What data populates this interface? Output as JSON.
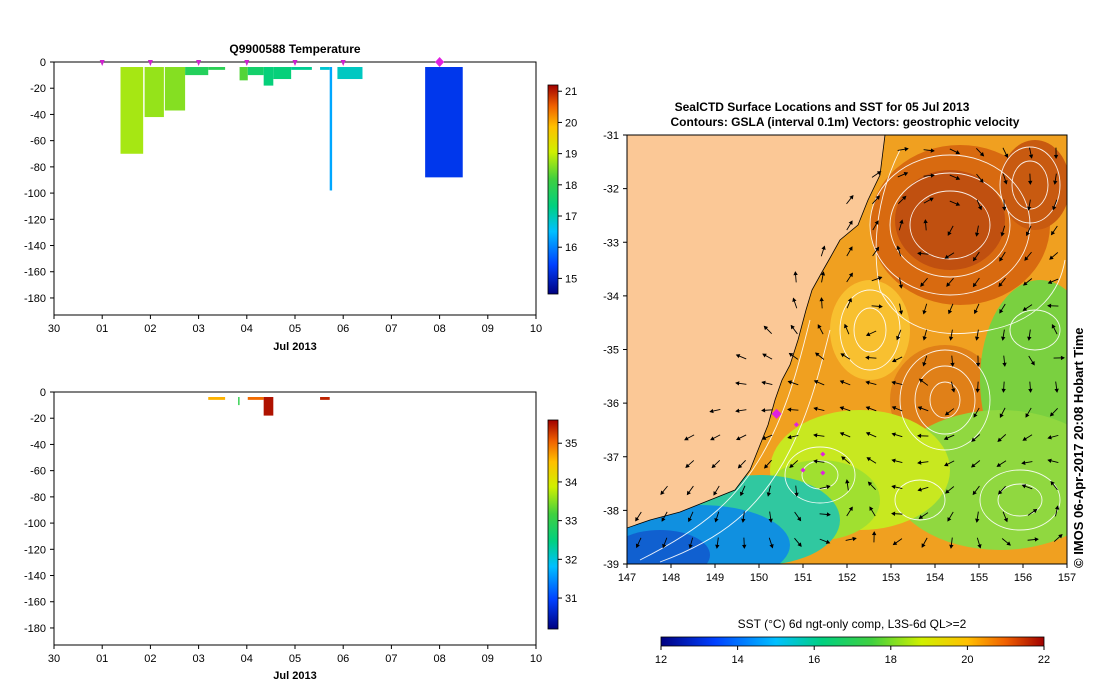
{
  "chart_data": [
    {
      "type": "heatmap",
      "title": "Q9900588  Temperature",
      "xlabel": "Jul 2013",
      "ylabel": "",
      "x_ticks": [
        "30",
        "01",
        "02",
        "03",
        "04",
        "05",
        "06",
        "07",
        "08",
        "09",
        "10"
      ],
      "xlim": [
        0,
        10
      ],
      "y_ticks": [
        0,
        -20,
        -40,
        -60,
        -80,
        -100,
        -120,
        -140,
        -160,
        -180
      ],
      "ylim": [
        -193,
        0
      ],
      "colorbar": {
        "min": 14.5,
        "max": 21.2,
        "ticks": [
          15,
          16,
          17,
          18,
          19,
          20,
          21
        ]
      },
      "profile_markers": [
        1,
        2,
        3,
        4,
        5,
        6
      ],
      "highlight_marker": 8,
      "profiles": [
        {
          "x0": 1.38,
          "x1": 1.85,
          "depth": 70,
          "value": 18.8
        },
        {
          "x0": 1.88,
          "x1": 2.28,
          "depth": 42,
          "value": 18.7
        },
        {
          "x0": 2.3,
          "x1": 2.72,
          "depth": 37,
          "value": 18.6
        },
        {
          "x0": 2.72,
          "x1": 3.2,
          "depth": 10,
          "value": 17.8
        },
        {
          "x0": 3.2,
          "x1": 3.55,
          "depth": 6,
          "value": 17.9
        },
        {
          "x0": 3.85,
          "x1": 4.02,
          "depth": 14,
          "value": 18.3
        },
        {
          "x0": 4.02,
          "x1": 4.35,
          "depth": 10,
          "value": 17.6
        },
        {
          "x0": 4.35,
          "x1": 4.55,
          "depth": 18,
          "value": 17.4
        },
        {
          "x0": 4.55,
          "x1": 4.92,
          "depth": 13,
          "value": 17.4
        },
        {
          "x0": 4.92,
          "x1": 5.35,
          "depth": 6,
          "value": 17.2
        },
        {
          "x0": 5.52,
          "x1": 5.72,
          "depth": 6,
          "value": 16.8
        },
        {
          "x0": 5.72,
          "x1": 5.77,
          "depth": 98,
          "value": 16.3
        },
        {
          "x0": 5.88,
          "x1": 6.4,
          "depth": 13,
          "value": 16.9
        },
        {
          "x0": 7.7,
          "x1": 8.48,
          "depth": 88,
          "value": 15.3
        }
      ]
    },
    {
      "type": "heatmap",
      "title": "",
      "xlabel": "Jul 2013",
      "ylabel": "",
      "x_ticks": [
        "30",
        "01",
        "02",
        "03",
        "04",
        "05",
        "06",
        "07",
        "08",
        "09",
        "10"
      ],
      "xlim": [
        0,
        10
      ],
      "y_ticks": [
        0,
        -20,
        -40,
        -60,
        -80,
        -100,
        -120,
        -140,
        -160,
        -180
      ],
      "ylim": [
        -193,
        0
      ],
      "colorbar": {
        "min": 30.2,
        "max": 35.6,
        "ticks": [
          31,
          32,
          33,
          34,
          35
        ]
      },
      "profiles": [
        {
          "x0": 3.2,
          "x1": 3.55,
          "depth": 6,
          "value": 34.6
        },
        {
          "x0": 3.82,
          "x1": 3.85,
          "depth": 10,
          "value": 33.0
        },
        {
          "x0": 4.02,
          "x1": 4.35,
          "depth": 6,
          "value": 35.0
        },
        {
          "x0": 4.35,
          "x1": 4.55,
          "depth": 18,
          "value": 35.5
        },
        {
          "x0": 5.52,
          "x1": 5.72,
          "depth": 6,
          "value": 35.4
        }
      ]
    },
    {
      "type": "heatmap",
      "title": "SealCTD Surface Locations and SST for 05 Jul 2013",
      "subtitle": "Contours: GSLA (interval 0.1m) Vectors: geostrophic velocity",
      "xlabel": "",
      "ylabel": "",
      "x_ticks": [
        "147",
        "148",
        "149",
        "150",
        "151",
        "152",
        "153",
        "154",
        "155",
        "156",
        "157"
      ],
      "xlim": [
        147,
        157
      ],
      "y_ticks": [
        "-31",
        "-32",
        "-33",
        "-34",
        "-35",
        "-36",
        "-37",
        "-38",
        "-39"
      ],
      "ylim": [
        -39,
        -31
      ],
      "colorbar": {
        "label": "SST (°C) 6d ngt-only comp, L3S-6d QL>=2",
        "min": 12,
        "max": 22,
        "ticks": [
          "12",
          "14",
          "16",
          "18",
          "20",
          "22"
        ]
      },
      "seal_positions": [
        {
          "lon": 150.4,
          "lat": -36.2,
          "highlight": true
        },
        {
          "lon": 150.85,
          "lat": -36.4,
          "highlight": false
        },
        {
          "lon": 151.45,
          "lat": -36.95,
          "highlight": false
        },
        {
          "lon": 151.0,
          "lat": -37.25,
          "highlight": false
        },
        {
          "lon": 151.45,
          "lat": -37.3,
          "highlight": false
        }
      ]
    }
  ],
  "credit": "© IMOS 06-Apr-2017 20:08 Hobart Time"
}
